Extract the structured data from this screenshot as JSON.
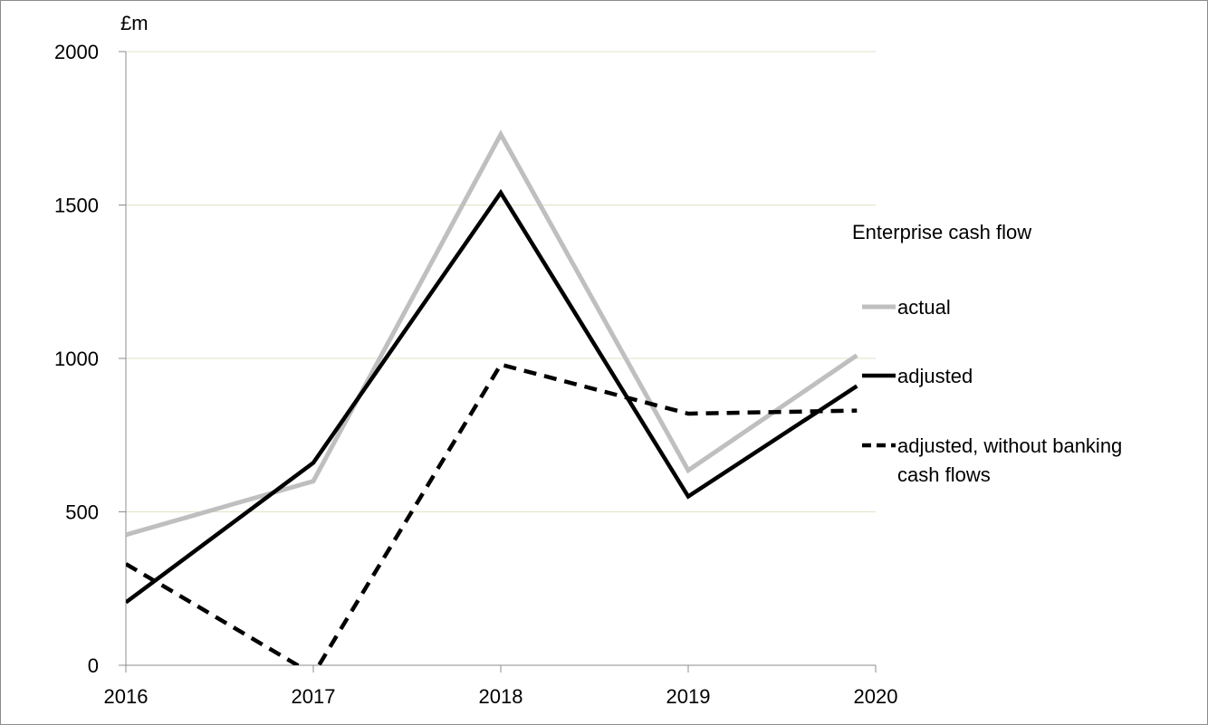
{
  "chart_data": {
    "type": "line",
    "y_unit": "£m",
    "x": [
      2016,
      2017,
      2018,
      2019,
      2020
    ],
    "x_ticks": [
      "2016",
      "2017",
      "2018",
      "2019",
      "2020"
    ],
    "y_ticks": [
      "0",
      "500",
      "1000",
      "1500",
      "2000"
    ],
    "xlim": [
      2016,
      2020
    ],
    "ylim": [
      0,
      2000
    ],
    "grid": "horizontal",
    "legend": {
      "title": "Enterprise cash flow",
      "placement": "right"
    },
    "series": [
      {
        "name": "actual",
        "color": "#bfbfbf",
        "style": "solid",
        "points": [
          [
            2016,
            425
          ],
          [
            2017,
            600
          ],
          [
            2018,
            1730
          ],
          [
            2019,
            635
          ],
          [
            2019.9,
            1010
          ]
        ]
      },
      {
        "name": "adjusted",
        "color": "#000000",
        "style": "solid",
        "points": [
          [
            2016,
            205
          ],
          [
            2017,
            660
          ],
          [
            2018,
            1540
          ],
          [
            2019,
            550
          ],
          [
            2019.9,
            910
          ]
        ]
      },
      {
        "name": "adjusted, without banking cash flows",
        "name_lines": [
          "adjusted, without banking",
          "cash flows"
        ],
        "color": "#000000",
        "style": "dashed",
        "points": [
          [
            2016,
            330
          ],
          [
            2017,
            -30
          ],
          [
            2018,
            980
          ],
          [
            2019,
            820
          ],
          [
            2019.9,
            830
          ]
        ]
      }
    ]
  }
}
